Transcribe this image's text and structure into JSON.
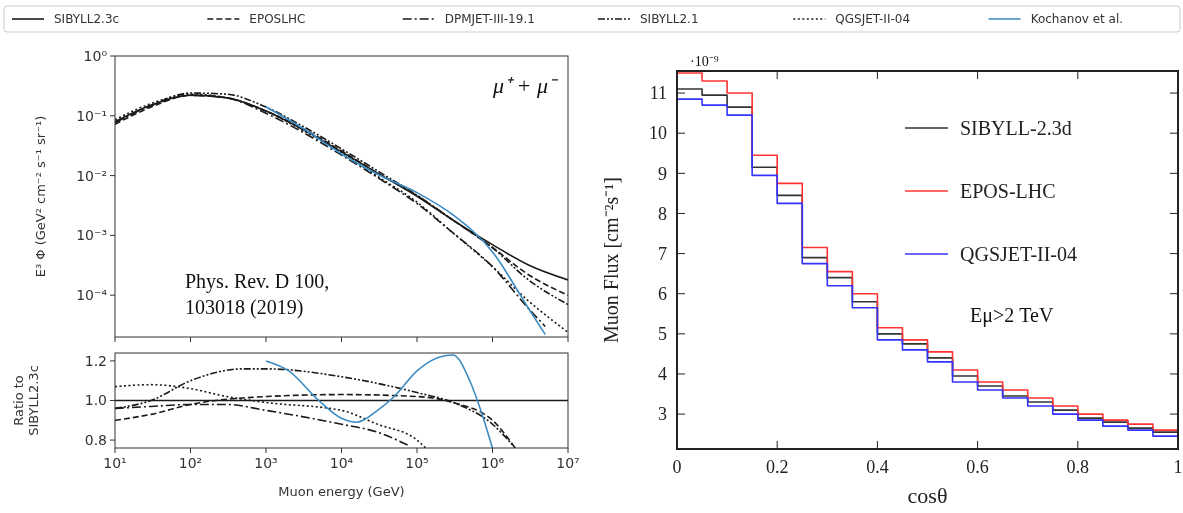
{
  "chart_data": [
    {
      "type": "line",
      "ylabel": "E³ Φ (GeV² cm⁻² s⁻¹ sr⁻¹)",
      "log": "xy",
      "legend": "top",
      "tick_labels": "y",
      "xlim": [
        10,
        10000000
      ],
      "xticks": [
        {
          "value": 10,
          "label": null
        },
        {
          "value": 100,
          "label": null
        },
        {
          "value": 1000,
          "label": null
        },
        {
          "value": 10000,
          "label": null
        },
        {
          "value": 100000,
          "label": null
        },
        {
          "value": 1000000,
          "label": null
        },
        {
          "value": 10000000,
          "label": null
        }
      ],
      "ylim": [
        2e-05,
        1
      ],
      "yticks": [
        {
          "value": 1,
          "label": "10⁰"
        },
        {
          "value": 0.1,
          "label": "10⁻¹"
        },
        {
          "value": 0.01,
          "label": "10⁻²"
        },
        {
          "value": 0.001,
          "label": "10⁻³"
        },
        {
          "value": 0.0001,
          "label": "10⁻⁴"
        }
      ],
      "annotations": [
        "μ⁺ + μ⁻",
        "Phys. Rev. D 100, 103018 (2019)"
      ],
      "series": [
        {
          "name": "SIBYLL2.3c",
          "color": "#1a1a1a",
          "line_style": "solid",
          "x": [
            10,
            30,
            100,
            300,
            1000,
            3000,
            10000,
            30000,
            100000,
            300000,
            1000000,
            3000000,
            10000000
          ],
          "values": [
            0.08,
            0.15,
            0.22,
            0.2,
            0.12,
            0.06,
            0.025,
            0.011,
            0.0045,
            0.0018,
            0.0007,
            0.00032,
            0.00018
          ]
        },
        {
          "name": "EPOSLHC",
          "color": "#1a1a1a",
          "line_style": "dashed",
          "x": [
            10,
            30,
            100,
            300,
            1000,
            3000,
            10000,
            30000,
            100000,
            300000,
            1000000,
            3000000,
            10000000
          ],
          "values": [
            0.072,
            0.14,
            0.22,
            0.2,
            0.12,
            0.062,
            0.026,
            0.011,
            0.0046,
            0.0018,
            0.00063,
            0.00022,
            0.0001
          ]
        },
        {
          "name": "DPMJET-III-19.1",
          "color": "#1a1a1a",
          "line_style": "dashdot",
          "x": [
            10,
            30,
            100,
            300,
            1000,
            3000,
            10000,
            30000,
            100000,
            300000,
            1000000,
            3000000,
            5000000
          ],
          "values": [
            0.077,
            0.147,
            0.22,
            0.2,
            0.11,
            0.054,
            0.022,
            0.0093,
            0.0034,
            0.0011,
            0.0003,
            6e-05,
            3e-05
          ]
        },
        {
          "name": "SIBYLL2.1",
          "color": "#1a1a1a",
          "line_style": "dashdotdot",
          "x": [
            10,
            30,
            100,
            300,
            1000,
            3000,
            10000,
            30000,
            100000,
            300000,
            1000000,
            3000000,
            10000000
          ],
          "values": [
            0.077,
            0.15,
            0.24,
            0.23,
            0.14,
            0.068,
            0.028,
            0.012,
            0.0047,
            0.0018,
            0.00062,
            0.00018,
            7e-05
          ]
        },
        {
          "name": "QGSJET-II-04",
          "color": "#1a1a1a",
          "line_style": "dotted",
          "x": [
            10,
            30,
            100,
            300,
            1000,
            3000,
            10000,
            30000,
            100000,
            300000,
            1000000,
            3000000,
            10000000
          ],
          "values": [
            0.086,
            0.16,
            0.23,
            0.2,
            0.12,
            0.058,
            0.024,
            0.0097,
            0.0036,
            0.0011,
            0.0003,
            8e-05,
            2.4e-05
          ]
        },
        {
          "name": "Kochanov et al.",
          "color": "#3b8bc2",
          "line_style": "solid",
          "x": [
            1000,
            3000,
            10000,
            30000,
            100000,
            300000,
            1000000,
            3000000,
            5000000
          ],
          "values": [
            0.14,
            0.063,
            0.023,
            0.0105,
            0.0052,
            0.0022,
            0.00053,
            6e-05,
            2.2e-05
          ]
        }
      ]
    },
    {
      "type": "line",
      "xlabel": "Muon energy (GeV)",
      "ylabel": "Ratio to SIBYLL2.3c",
      "log": "x",
      "xlim": [
        10,
        10000000
      ],
      "xticks": [
        {
          "value": 10,
          "label": "10¹"
        },
        {
          "value": 100,
          "label": "10²"
        },
        {
          "value": 1000,
          "label": "10³"
        },
        {
          "value": 10000,
          "label": "10⁴"
        },
        {
          "value": 100000,
          "label": "10⁵"
        },
        {
          "value": 1000000,
          "label": "10⁶"
        },
        {
          "value": 10000000,
          "label": "10⁷"
        }
      ],
      "ylim": [
        0.76,
        1.24
      ],
      "yticks": [
        0.8,
        {
          "value": 1,
          "label": "1.0"
        },
        1.2
      ],
      "series": [
        {
          "color": "#1a1a1a",
          "line_style": "solid",
          "x": [
            10,
            10000000
          ],
          "values": [
            1,
            1
          ]
        },
        {
          "color": "#1a1a1a",
          "line_style": "dashed",
          "x": [
            10,
            30,
            100,
            1000,
            10000,
            100000,
            300000,
            1000000,
            2000000
          ],
          "values": [
            0.9,
            0.93,
            0.98,
            1.02,
            1.03,
            1.02,
            0.99,
            0.9,
            0.76
          ]
        },
        {
          "color": "#1a1a1a",
          "line_style": "dashdot",
          "x": [
            10,
            30,
            100,
            300,
            1000,
            10000,
            30000,
            80000
          ],
          "values": [
            0.96,
            0.97,
            0.98,
            0.98,
            0.95,
            0.88,
            0.84,
            0.77
          ]
        },
        {
          "color": "#1a1a1a",
          "line_style": "dashdotdot",
          "x": [
            10,
            30,
            100,
            500,
            1000,
            10000,
            100000,
            300000,
            1000000,
            2000000
          ],
          "values": [
            0.96,
            1.0,
            1.1,
            1.16,
            1.16,
            1.12,
            1.04,
            0.99,
            0.88,
            0.76
          ]
        },
        {
          "color": "#1a1a1a",
          "line_style": "dotted",
          "x": [
            10,
            30,
            100,
            300,
            1000,
            10000,
            30000,
            100000,
            130000
          ],
          "values": [
            1.07,
            1.08,
            1.06,
            1.02,
            0.99,
            0.95,
            0.88,
            0.8,
            0.76
          ]
        },
        {
          "color": "#3b8bc2",
          "line_style": "solid",
          "x": [
            1000,
            2000,
            5000,
            10000,
            16000,
            30000,
            50000,
            100000,
            200000,
            300000,
            500000,
            700000,
            1000000
          ],
          "values": [
            1.2,
            1.15,
            1.0,
            0.91,
            0.89,
            0.95,
            1.02,
            1.15,
            1.22,
            1.23,
            1.1,
            0.95,
            0.76
          ]
        }
      ]
    },
    {
      "type": "histogram",
      "xlabel": "cosθ",
      "ylabel": "Muon Flux [cm⁻²s⁻¹]",
      "legend": "right",
      "bins": [
        0,
        0.05,
        0.1,
        0.15,
        0.2,
        0.25,
        0.3,
        0.35,
        0.4,
        0.45,
        0.5,
        0.55,
        0.6,
        0.65,
        0.7,
        0.75,
        0.8,
        0.85,
        0.9,
        0.95,
        1
      ],
      "xlim": [
        0,
        1
      ],
      "xticks": [
        0,
        0.2,
        0.4,
        0.6,
        0.8,
        1
      ],
      "ylim": [
        2.13,
        11.55
      ],
      "yticks": [
        3,
        4,
        5,
        6,
        7,
        8,
        9,
        10,
        11
      ],
      "annotations": [
        "·10⁻⁹",
        "Eμ>2 TeV"
      ],
      "series": [
        {
          "name": "SIBYLL-2.3d",
          "color": "#333333",
          "values": [
            11.1,
            10.95,
            10.65,
            9.15,
            8.45,
            6.9,
            6.4,
            5.8,
            5.0,
            4.75,
            4.4,
            3.95,
            3.7,
            3.45,
            3.3,
            3.1,
            2.9,
            2.8,
            2.65,
            2.55
          ]
        },
        {
          "name": "EPOS-LHC",
          "color": "#ff3333",
          "values": [
            11.5,
            11.3,
            11.0,
            9.45,
            8.75,
            7.15,
            6.55,
            6.0,
            5.15,
            4.85,
            4.55,
            4.1,
            3.8,
            3.6,
            3.4,
            3.2,
            3.0,
            2.85,
            2.75,
            2.6
          ]
        },
        {
          "name": "QGSJET-II-04",
          "color": "#3333ff",
          "values": [
            10.85,
            10.7,
            10.45,
            8.95,
            8.25,
            6.75,
            6.2,
            5.65,
            4.85,
            4.6,
            4.3,
            3.8,
            3.6,
            3.4,
            3.2,
            3.0,
            2.85,
            2.7,
            2.6,
            2.45
          ]
        }
      ]
    }
  ]
}
